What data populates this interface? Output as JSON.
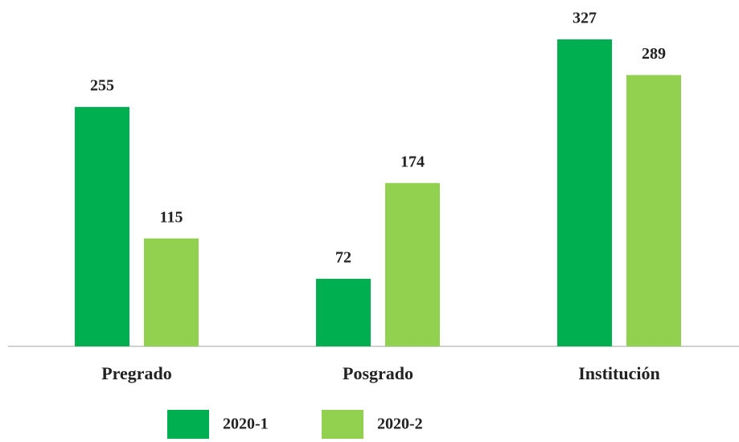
{
  "chart_data": {
    "type": "bar",
    "categories": [
      "Pregrado",
      "Posgrado",
      "Institución"
    ],
    "series": [
      {
        "name": "2020-1",
        "color": "#00b050",
        "values": [
          255,
          72,
          327
        ]
      },
      {
        "name": "2020-2",
        "color": "#92d050",
        "values": [
          115,
          174,
          289
        ]
      }
    ],
    "legend": "bottom"
  }
}
